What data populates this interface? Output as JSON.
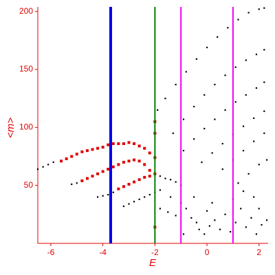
{
  "chart_data": {
    "type": "scatter",
    "x_label": "E",
    "y_label": "<m>",
    "xlim": [
      -6.5,
      2.35
    ],
    "ylim": [
      0,
      204
    ],
    "xticks": [
      -6,
      -4,
      -2,
      0,
      2
    ],
    "yticks": [
      50,
      100,
      150,
      200
    ],
    "axis_color": "#e00000",
    "vlines": [
      {
        "x": -3.7,
        "color": "#0000ee"
      },
      {
        "x": -2,
        "color": "#008000"
      },
      {
        "x": -1,
        "color": "#ee00ee"
      },
      {
        "x": 1,
        "color": "#ee00ee"
      }
    ],
    "series": [
      {
        "color": "#000000",
        "x": [
          -6.5,
          -6.3,
          -6.1,
          -5.9,
          -5.2,
          -5.0,
          -4.2,
          -4.0,
          -3.8,
          -3.6,
          -3.2,
          -3.0,
          -2.8,
          -2.6,
          -2.4,
          -2.2,
          -2.0,
          -1.8,
          -1.8,
          -1.6,
          -1.4,
          -1.2,
          -1.0,
          -1.9,
          -1.6,
          -1.2,
          -0.8,
          -0.4,
          0,
          0.4,
          0.8,
          1.2,
          1.6,
          2.0,
          2.2,
          -1.3,
          -0.9,
          -0.5,
          -0.1,
          0.3,
          0.7,
          1.1,
          1.5,
          1.9,
          2.2,
          -0.9,
          -0.5,
          -0.1,
          0.3,
          0.7,
          1.1,
          1.5,
          1.9,
          2.2,
          -0.2,
          0.2,
          0.6,
          1.0,
          1.4,
          1.8,
          2.2,
          0.6,
          1.0,
          1.4,
          1.8,
          2.2,
          1.2,
          1.6,
          2.0,
          2.3,
          -1.8,
          -1.5,
          -1.2,
          -0.8,
          -0.6,
          -0.4,
          -0.3,
          -0.1,
          0.1,
          0.3,
          0.5,
          0.7,
          0.9,
          1.1,
          1.3,
          1.5,
          1.7,
          1.9,
          2.1,
          2.3,
          -1.0,
          -0.5,
          0.2,
          1.0,
          1.8,
          2.0,
          -1.4,
          -0.9,
          0.0,
          1.4
        ],
        "values": [
          64,
          66,
          68,
          70,
          51,
          52,
          40,
          41,
          42,
          44,
          32,
          34,
          36,
          38,
          40,
          42,
          44,
          46,
          58,
          56,
          55,
          53,
          50,
          115,
          125,
          137,
          148,
          159,
          169,
          178,
          186,
          193,
          199,
          202,
          203,
          95,
          107,
          118,
          128,
          137,
          145,
          152,
          158,
          163,
          167,
          80,
          90,
          99,
          107,
          115,
          122,
          128,
          134,
          139,
          70,
          78,
          86,
          94,
          101,
          108,
          114,
          64,
          72,
          80,
          88,
          95,
          52,
          60,
          68,
          72,
          30,
          27,
          24,
          30,
          22,
          18,
          12,
          8,
          15,
          20,
          12,
          25,
          10,
          18,
          30,
          14,
          22,
          8,
          16,
          20,
          35,
          40,
          35,
          38,
          40,
          30,
          40,
          8,
          28,
          45
        ]
      },
      {
        "color": "#e00000",
        "x": [
          -5.6,
          -5.4,
          -5.2,
          -5.0,
          -4.8,
          -4.6,
          -4.4,
          -4.2,
          -4.0,
          -3.8,
          -3.6,
          -3.4,
          -3.2,
          -3.0,
          -2.8,
          -2.6,
          -2.4,
          -2.2,
          -2.0,
          -4.8,
          -4.6,
          -4.4,
          -4.2,
          -4.0,
          -3.8,
          -3.6,
          -3.4,
          -3.2,
          -3.0,
          -2.8,
          -2.6,
          -2.4,
          -2.2,
          -3.4,
          -3.2,
          -3.0,
          -2.8,
          -2.6,
          -2.4,
          -2.2,
          -2.0,
          -2.0,
          -2.0,
          -2.0
        ],
        "values": [
          71,
          73,
          75,
          77,
          79,
          80,
          81,
          82,
          83,
          85,
          86,
          86,
          86,
          87,
          86,
          84,
          82,
          78,
          74,
          54,
          56,
          58,
          60,
          62,
          64,
          66,
          68,
          70,
          71,
          72,
          71,
          68,
          63,
          47,
          49,
          51,
          53,
          55,
          57,
          58,
          60,
          95,
          105,
          14
        ]
      }
    ]
  }
}
